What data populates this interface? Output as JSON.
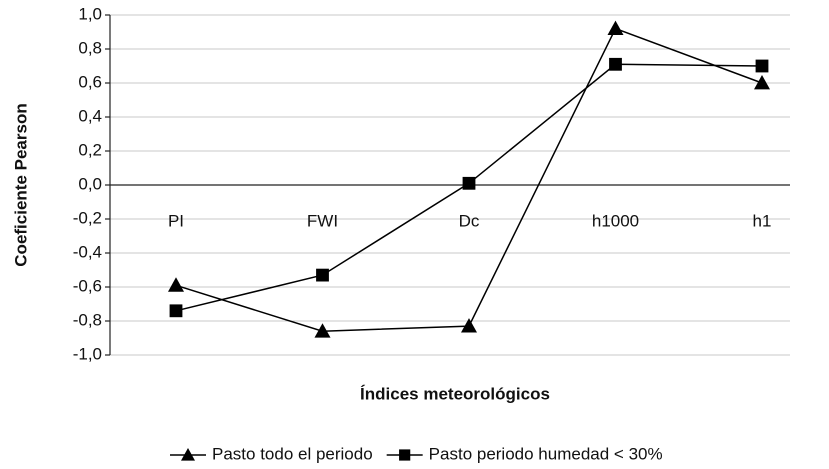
{
  "chart_data": {
    "type": "line",
    "categories": [
      "PI",
      "FWI",
      "Dc",
      "h1000",
      "h1"
    ],
    "series": [
      {
        "name": "Pasto todo el periodo",
        "color": "#000000",
        "marker": "triangle",
        "values": [
          -0.59,
          -0.86,
          -0.83,
          0.92,
          0.6
        ]
      },
      {
        "name": "Pasto periodo humedad < 30%",
        "color": "#000000",
        "marker": "square",
        "values": [
          -0.74,
          -0.53,
          0.01,
          0.71,
          0.7
        ]
      }
    ],
    "ylabel": "Coeficiente Pearson",
    "xlabel": "Índices meteorológicos",
    "ylim": [
      -1,
      1
    ],
    "yticks": [
      {
        "value": -1,
        "label": "-1,0"
      },
      {
        "value": -0.8,
        "label": "-0,8"
      },
      {
        "value": -0.6,
        "label": "-0,6"
      },
      {
        "value": -0.4,
        "label": "-0,4"
      },
      {
        "value": -0.2,
        "label": "-0,2"
      },
      {
        "value": 0,
        "label": "0,0"
      },
      {
        "value": 0.2,
        "label": "0,2"
      },
      {
        "value": 0.4,
        "label": "0,4"
      },
      {
        "value": 0.6,
        "label": "0,6"
      },
      {
        "value": 0.8,
        "label": "0,8"
      },
      {
        "value": 1,
        "label": "1,0"
      }
    ],
    "grid": true,
    "legend": "bottom"
  }
}
